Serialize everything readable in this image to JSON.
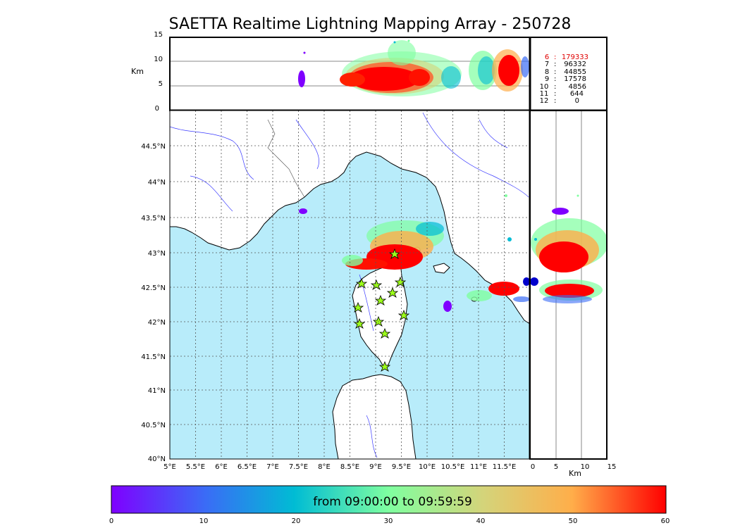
{
  "title": "SAETTA Realtime Lightning Mapping Array - 250728",
  "top_panel": {
    "y_label": "Km",
    "y_ticks": [
      "15",
      "10",
      "5",
      "0"
    ],
    "stats": [
      {
        "station": "6",
        "count": "179333",
        "highlight": true
      },
      {
        "station": "7",
        "count": "96332",
        "highlight": false
      },
      {
        "station": "8",
        "count": "44855",
        "highlight": false
      },
      {
        "station": "9",
        "count": "17578",
        "highlight": false
      },
      {
        "station": "10",
        "count": "4856",
        "highlight": false
      },
      {
        "station": "11",
        "count": "644",
        "highlight": false
      },
      {
        "station": "12",
        "count": "0",
        "highlight": false
      }
    ]
  },
  "map": {
    "lon_ticks": [
      "5°E",
      "5.5°E",
      "6°E",
      "6.5°E",
      "7°E",
      "7.5°E",
      "8°E",
      "8.5°E",
      "9°E",
      "9.5°E",
      "10°E",
      "10.5°E",
      "11°E",
      "11.5°E"
    ],
    "lat_ticks": [
      "40°N",
      "40.5°N",
      "41°N",
      "41.5°N",
      "42°N",
      "42.5°N",
      "43°N",
      "43.5°N",
      "44°N",
      "44.5°N"
    ],
    "sea_color": "#b8ecfa",
    "land_color": "#ffffff"
  },
  "right_panel": {
    "x_label": "Km",
    "x_ticks": [
      "0",
      "5",
      "10",
      "15"
    ]
  },
  "colorbar": {
    "label": "from 09:00:00 to 09:59:59",
    "ticks": [
      "0",
      "10",
      "20",
      "30",
      "40",
      "50",
      "60"
    ],
    "stops": [
      "#7f00ff",
      "#2a8ef2",
      "#00bcd4",
      "#7fffa0",
      "#d4d47a",
      "#ffae4a",
      "#ff0000"
    ]
  }
}
